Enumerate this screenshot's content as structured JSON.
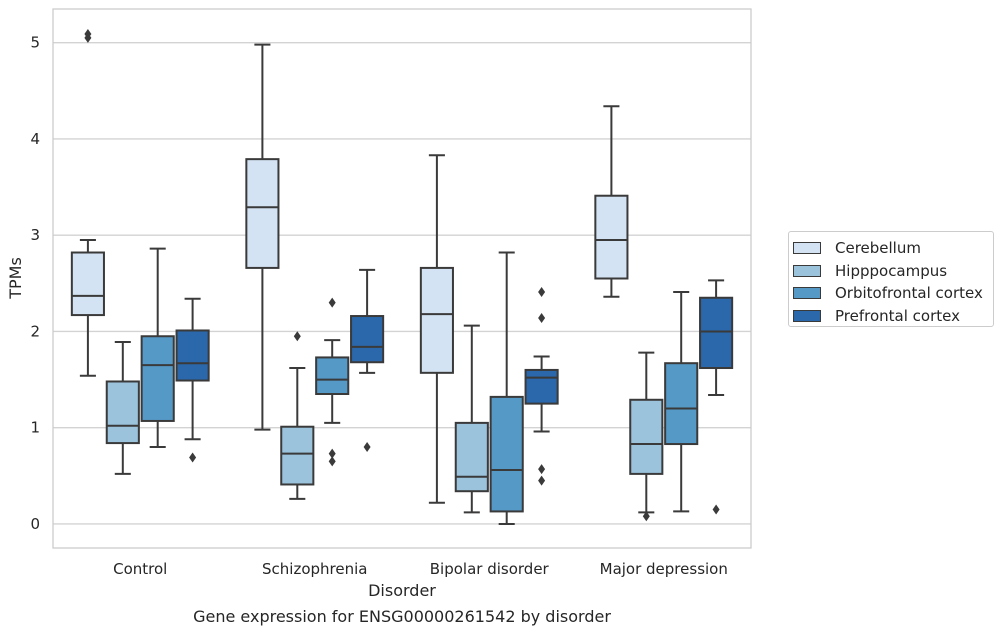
{
  "chart_data": {
    "type": "boxplot",
    "title": "",
    "caption": "Gene expression for ENSG00000261542 by disorder",
    "xlabel": "Disorder",
    "ylabel": "TPMs",
    "ylim": [
      -0.25,
      5.35
    ],
    "yticks": [
      0,
      1,
      2,
      3,
      4,
      5
    ],
    "categories": [
      "Control",
      "Schizophrenia",
      "Bipolar disorder",
      "Major depression"
    ],
    "grid": "horizontal",
    "legend_position": "outside-right",
    "series": [
      {
        "name": "Cerebellum",
        "color": "#d4e3f3",
        "boxes": [
          {
            "whislo": 1.54,
            "q1": 2.17,
            "med": 2.37,
            "q3": 2.82,
            "whishi": 2.95,
            "fliers": [
              5.05,
              5.09
            ]
          },
          {
            "whislo": 0.98,
            "q1": 2.66,
            "med": 3.29,
            "q3": 3.79,
            "whishi": 4.98,
            "fliers": []
          },
          {
            "whislo": 0.22,
            "q1": 1.57,
            "med": 2.18,
            "q3": 2.66,
            "whishi": 3.83,
            "fliers": []
          },
          {
            "whislo": 2.36,
            "q1": 2.55,
            "med": 2.95,
            "q3": 3.41,
            "whishi": 4.34,
            "fliers": []
          }
        ]
      },
      {
        "name": "Hipppocampus",
        "color": "#9bc3dc",
        "boxes": [
          {
            "whislo": 0.52,
            "q1": 0.84,
            "med": 1.02,
            "q3": 1.48,
            "whishi": 1.89,
            "fliers": []
          },
          {
            "whislo": 0.26,
            "q1": 0.41,
            "med": 0.73,
            "q3": 1.01,
            "whishi": 1.62,
            "fliers": [
              1.95
            ]
          },
          {
            "whislo": 0.12,
            "q1": 0.34,
            "med": 0.49,
            "q3": 1.05,
            "whishi": 2.06,
            "fliers": []
          },
          {
            "whislo": 0.12,
            "q1": 0.52,
            "med": 0.83,
            "q3": 1.29,
            "whishi": 1.78,
            "fliers": [
              0.08
            ]
          }
        ]
      },
      {
        "name": "Orbitofrontal cortex",
        "color": "#5599c7",
        "boxes": [
          {
            "whislo": 0.8,
            "q1": 1.07,
            "med": 1.65,
            "q3": 1.95,
            "whishi": 2.86,
            "fliers": []
          },
          {
            "whislo": 1.05,
            "q1": 1.35,
            "med": 1.5,
            "q3": 1.73,
            "whishi": 1.91,
            "fliers": [
              2.3,
              0.73,
              0.65
            ]
          },
          {
            "whislo": 0.0,
            "q1": 0.13,
            "med": 0.56,
            "q3": 1.32,
            "whishi": 2.82,
            "fliers": []
          },
          {
            "whislo": 0.13,
            "q1": 0.83,
            "med": 1.2,
            "q3": 1.67,
            "whishi": 2.41,
            "fliers": []
          }
        ]
      },
      {
        "name": "Prefrontal cortex",
        "color": "#2a67ab",
        "boxes": [
          {
            "whislo": 0.88,
            "q1": 1.49,
            "med": 1.67,
            "q3": 2.01,
            "whishi": 2.34,
            "fliers": [
              0.69
            ]
          },
          {
            "whislo": 1.57,
            "q1": 1.68,
            "med": 1.84,
            "q3": 2.16,
            "whishi": 2.64,
            "fliers": [
              0.8
            ]
          },
          {
            "whislo": 0.96,
            "q1": 1.25,
            "med": 1.52,
            "q3": 1.6,
            "whishi": 1.74,
            "fliers": [
              2.41,
              2.14,
              0.57,
              0.45
            ]
          },
          {
            "whislo": 1.34,
            "q1": 1.62,
            "med": 2.0,
            "q3": 2.35,
            "whishi": 2.53,
            "fliers": [
              0.15
            ]
          }
        ]
      }
    ]
  }
}
